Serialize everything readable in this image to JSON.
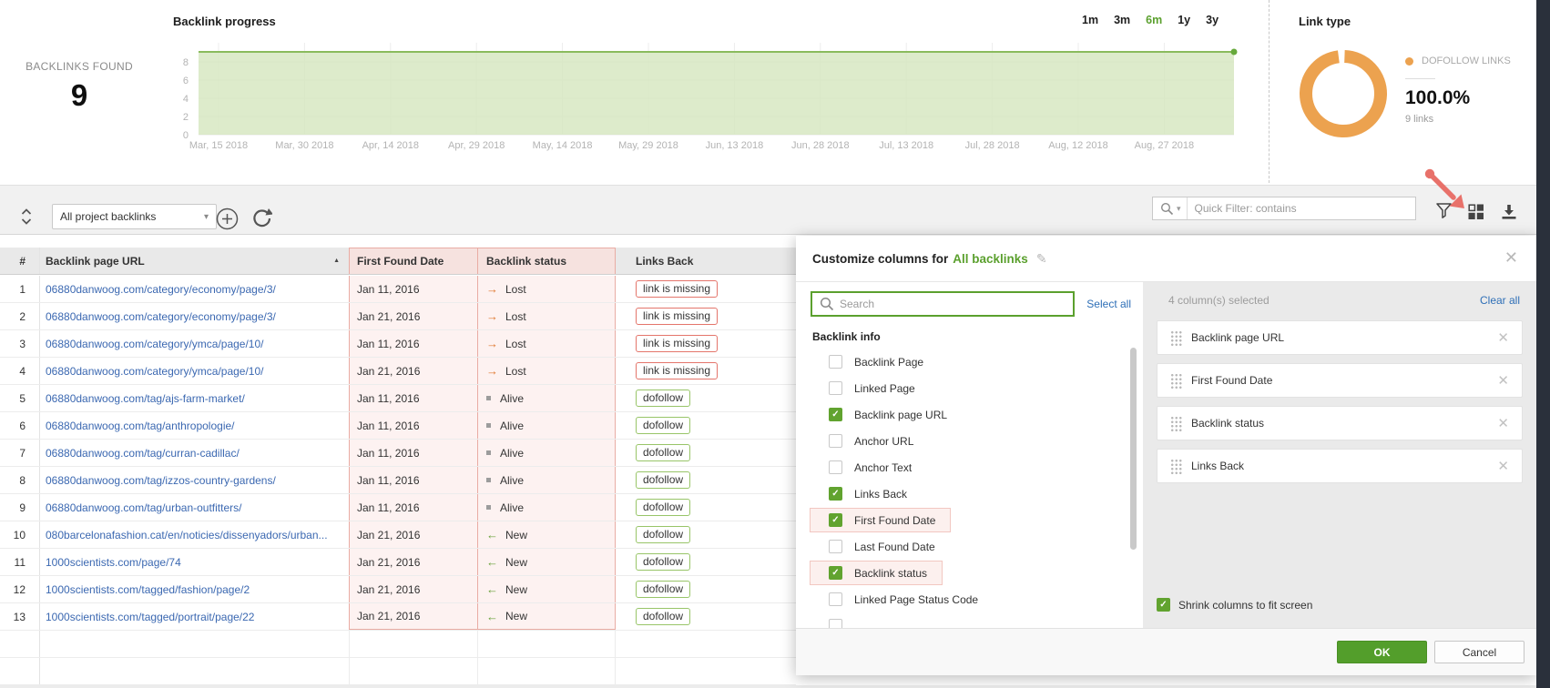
{
  "top": {
    "backlinks_found_label": "BACKLINKS FOUND",
    "backlinks_found_value": "9",
    "range_options": [
      "1m",
      "3m",
      "6m",
      "1y",
      "3y"
    ],
    "range_selected": "6m"
  },
  "chart_data": {
    "type": "area",
    "title": "Backlink progress",
    "x": [
      "Mar, 15 2018",
      "Mar, 30 2018",
      "Apr, 14 2018",
      "Apr, 29 2018",
      "May, 14 2018",
      "May, 29 2018",
      "Jun, 13 2018",
      "Jun, 28 2018",
      "Jul, 13 2018",
      "Jul, 28 2018",
      "Aug, 12 2018",
      "Aug, 27 2018"
    ],
    "series": [
      {
        "name": "Backlinks found",
        "values": [
          9,
          9,
          9,
          9,
          9,
          9,
          9,
          9,
          9,
          9,
          9,
          9
        ]
      }
    ],
    "y_ticks": [
      0,
      2,
      4,
      6,
      8
    ],
    "ylim": [
      0,
      9
    ],
    "grid": true,
    "legend_position": "none",
    "fill_color": "#d5e6c0",
    "line_color": "#8abb5d"
  },
  "link_type": {
    "title": "Link type",
    "chart_data": {
      "type": "pie",
      "categories": [
        "DOFOLLOW LINKS"
      ],
      "values": [
        100.0
      ],
      "title": "Link type"
    },
    "legend_label": "DOFOLLOW LINKS",
    "percent": "100.0%",
    "links_count": "9 links",
    "donut_color": "#eca24f"
  },
  "toolbar": {
    "project_select_value": "All project backlinks",
    "quick_filter_placeholder": "Quick Filter: contains"
  },
  "table": {
    "columns": [
      "#",
      "Backlink page URL",
      "First Found Date",
      "Backlink status",
      "Links Back"
    ],
    "sorted_column": "Backlink page URL",
    "sort_direction": "asc",
    "highlighted_columns": [
      "First Found Date",
      "Backlink status"
    ],
    "rows": [
      {
        "num": "1",
        "url": "06880danwoog.com/category/economy/page/3/",
        "first_found": "Jan 11, 2016",
        "status": "Lost",
        "links_back": "link is missing"
      },
      {
        "num": "2",
        "url": "06880danwoog.com/category/economy/page/3/",
        "first_found": "Jan 21, 2016",
        "status": "Lost",
        "links_back": "link is missing"
      },
      {
        "num": "3",
        "url": "06880danwoog.com/category/ymca/page/10/",
        "first_found": "Jan 11, 2016",
        "status": "Lost",
        "links_back": "link is missing"
      },
      {
        "num": "4",
        "url": "06880danwoog.com/category/ymca/page/10/",
        "first_found": "Jan 21, 2016",
        "status": "Lost",
        "links_back": "link is missing"
      },
      {
        "num": "5",
        "url": "06880danwoog.com/tag/ajs-farm-market/",
        "first_found": "Jan 11, 2016",
        "status": "Alive",
        "links_back": "dofollow"
      },
      {
        "num": "6",
        "url": "06880danwoog.com/tag/anthropologie/",
        "first_found": "Jan 11, 2016",
        "status": "Alive",
        "links_back": "dofollow"
      },
      {
        "num": "7",
        "url": "06880danwoog.com/tag/curran-cadillac/",
        "first_found": "Jan 11, 2016",
        "status": "Alive",
        "links_back": "dofollow"
      },
      {
        "num": "8",
        "url": "06880danwoog.com/tag/izzos-country-gardens/",
        "first_found": "Jan 11, 2016",
        "status": "Alive",
        "links_back": "dofollow"
      },
      {
        "num": "9",
        "url": "06880danwoog.com/tag/urban-outfitters/",
        "first_found": "Jan 11, 2016",
        "status": "Alive",
        "links_back": "dofollow"
      },
      {
        "num": "10",
        "url": "080barcelonafashion.cat/en/noticies/dissenyadors/urban...",
        "first_found": "Jan 21, 2016",
        "status": "New",
        "links_back": "dofollow"
      },
      {
        "num": "11",
        "url": "1000scientists.com/page/74",
        "first_found": "Jan 21, 2016",
        "status": "New",
        "links_back": "dofollow"
      },
      {
        "num": "12",
        "url": "1000scientists.com/tagged/fashion/page/2",
        "first_found": "Jan 21, 2016",
        "status": "New",
        "links_back": "dofollow"
      },
      {
        "num": "13",
        "url": "1000scientists.com/tagged/portrait/page/22",
        "first_found": "Jan 21, 2016",
        "status": "New",
        "links_back": "dofollow"
      }
    ]
  },
  "dialog": {
    "title_prefix": "Customize columns for",
    "title_target": "All backlinks",
    "search_placeholder": "Search",
    "select_all_label": "Select all",
    "selected_count_label": "4 column(s) selected",
    "clear_all_label": "Clear all",
    "section_title": "Backlink info",
    "items": [
      {
        "label": "Backlink Page",
        "checked": false,
        "highlighted": false
      },
      {
        "label": "Linked Page",
        "checked": false,
        "highlighted": false
      },
      {
        "label": "Backlink page URL",
        "checked": true,
        "highlighted": false
      },
      {
        "label": "Anchor URL",
        "checked": false,
        "highlighted": false
      },
      {
        "label": "Anchor Text",
        "checked": false,
        "highlighted": false
      },
      {
        "label": "Links Back",
        "checked": true,
        "highlighted": false
      },
      {
        "label": "First Found Date",
        "checked": true,
        "highlighted": true
      },
      {
        "label": "Last Found Date",
        "checked": false,
        "highlighted": false
      },
      {
        "label": "Backlink status",
        "checked": true,
        "highlighted": true
      },
      {
        "label": "Linked Page Status Code",
        "checked": false,
        "highlighted": false
      },
      {
        "label": "",
        "checked": false,
        "highlighted": false
      }
    ],
    "selected_columns": [
      "Backlink page URL",
      "First Found Date",
      "Backlink status",
      "Links Back"
    ],
    "shrink_label": "Shrink columns to fit screen",
    "shrink_checked": true,
    "ok_label": "OK",
    "cancel_label": "Cancel"
  },
  "colors": {
    "accent_green": "#5ba02e",
    "link_blue": "#2f6db8",
    "lost_orange": "#e0782f",
    "new_green": "#6aa23c",
    "alive_gray": "#9c9c9c",
    "highlight_pink_bg": "#fdf2f1",
    "highlight_pink_border": "#e9aca4",
    "missing_badge_border": "#e4756b",
    "dofollow_badge_border": "#98c568",
    "donut_orange": "#eca24f",
    "annotation_arrow": "#e8716a"
  }
}
